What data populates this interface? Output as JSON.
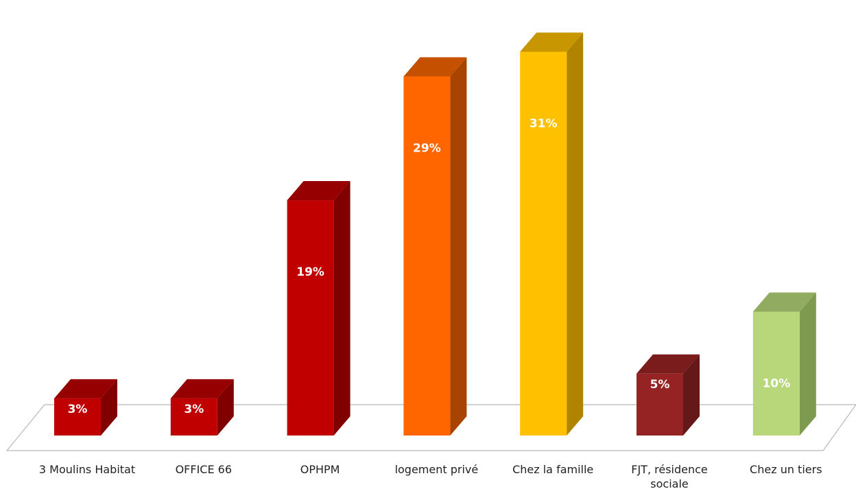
{
  "chart_data": {
    "type": "bar",
    "style": "3d-column",
    "categories": [
      "3 Moulins Habitat",
      "OFFICE 66",
      "OPHPM",
      "logement privé",
      "Chez la famille",
      "FJT, résidence sociale",
      "Chez un tiers"
    ],
    "values": [
      3,
      3,
      19,
      29,
      31,
      5,
      10
    ],
    "value_labels": [
      "3%",
      "3%",
      "19%",
      "29%",
      "31%",
      "5%",
      "10%"
    ],
    "unit": "%",
    "colors": {
      "front": [
        "#c00000",
        "#c00000",
        "#c00000",
        "#ff6600",
        "#ffc000",
        "#962323",
        "#b8d67a"
      ],
      "side": [
        "#800000",
        "#800000",
        "#800000",
        "#a84300",
        "#b08400",
        "#651818",
        "#7d9a4f"
      ],
      "top": [
        "#960000",
        "#960000",
        "#960000",
        "#c55000",
        "#c79600",
        "#7a1c1c",
        "#91ac60"
      ]
    },
    "ylim": [
      0,
      31
    ],
    "title": "",
    "xlabel": "",
    "ylabel": "",
    "grid": false,
    "legend": "none"
  }
}
